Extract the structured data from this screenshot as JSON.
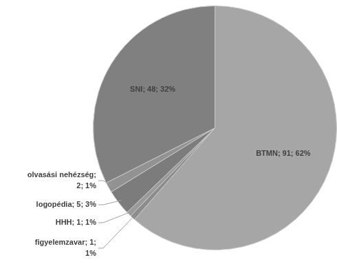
{
  "chart_data": {
    "type": "pie",
    "categories": [
      "BTMN",
      "figyelemzavar",
      "HHH",
      "logopédia",
      "olvasási nehézség",
      "SNI"
    ],
    "values": [
      91,
      1,
      1,
      5,
      2,
      48
    ],
    "value_labels": [
      "BTMN; 91; 62%",
      "figyelemzavar; 1; 1%",
      "HHH; 1; 1%",
      "logopédia; 5; 3%",
      "olvasási nehézség; 2; 1%",
      "SNI; 48; 32%"
    ],
    "colors": [
      "#a6a6a6",
      "#8c8c8c",
      "#9a9a9a",
      "#7c7c7c",
      "#929292",
      "#808080"
    ],
    "data_labels": true
  }
}
